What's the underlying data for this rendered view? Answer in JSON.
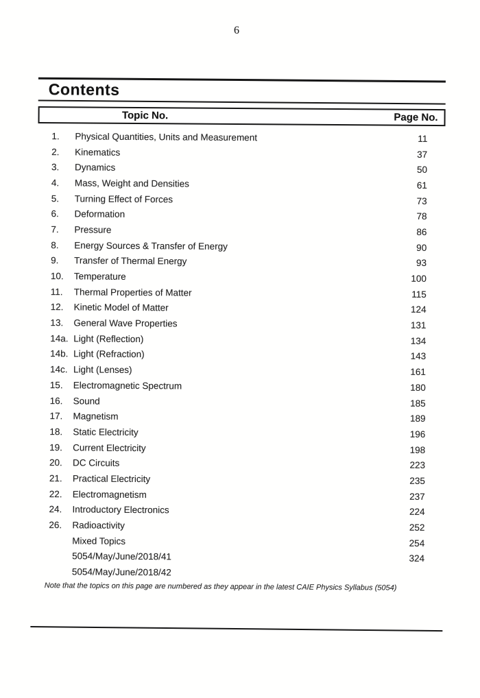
{
  "page": {
    "number": "6",
    "note": "Note that the topics on this page are numbered as they appear in the latest CAIE Physics Syllabus (5054)"
  },
  "contents": {
    "title": "Contents",
    "columns": {
      "topic": "Topic No.",
      "page": "Page No."
    },
    "rows": [
      {
        "no": "1.",
        "topic": "Physical Quantities, Units and Measurement",
        "page": "11"
      },
      {
        "no": "2.",
        "topic": "Kinematics",
        "page": "37"
      },
      {
        "no": "3.",
        "topic": "Dynamics",
        "page": "50"
      },
      {
        "no": "4.",
        "topic": "Mass, Weight and Densities",
        "page": "61"
      },
      {
        "no": "5.",
        "topic": "Turning Effect of Forces",
        "page": "73"
      },
      {
        "no": "6.",
        "topic": "Deformation",
        "page": "78"
      },
      {
        "no": "7.",
        "topic": "Pressure",
        "page": "86"
      },
      {
        "no": "8.",
        "topic": "Energy Sources & Transfer of Energy",
        "page": "90"
      },
      {
        "no": "9.",
        "topic": "Transfer of Thermal Energy",
        "page": "93"
      },
      {
        "no": "10.",
        "topic": "Temperature",
        "page": "100"
      },
      {
        "no": "11.",
        "topic": "Thermal Properties of Matter",
        "page": "115"
      },
      {
        "no": "12.",
        "topic": "Kinetic Model of Matter",
        "page": "124"
      },
      {
        "no": "13.",
        "topic": "General Wave Properties",
        "page": "131"
      },
      {
        "no": "14a.",
        "topic": "Light (Reflection)",
        "page": "134"
      },
      {
        "no": "14b.",
        "topic": "Light (Refraction)",
        "page": "143"
      },
      {
        "no": "14c.",
        "topic": "Light (Lenses)",
        "page": "161"
      },
      {
        "no": "15.",
        "topic": "Electromagnetic Spectrum",
        "page": "180"
      },
      {
        "no": "16.",
        "topic": "Sound",
        "page": "185"
      },
      {
        "no": "17.",
        "topic": "Magnetism",
        "page": "189"
      },
      {
        "no": "18.",
        "topic": "Static Electricity",
        "page": "196"
      },
      {
        "no": "19.",
        "topic": "Current Electricity",
        "page": "198"
      },
      {
        "no": "20.",
        "topic": "DC Circuits",
        "page": "223"
      },
      {
        "no": "21.",
        "topic": "Practical Electricity",
        "page": "235"
      },
      {
        "no": "22.",
        "topic": "Electromagnetism",
        "page": "237"
      },
      {
        "no": "24.",
        "topic": "Introductory Electronics",
        "page": "224"
      },
      {
        "no": "26.",
        "topic": "Radioactivity",
        "page": "252"
      },
      {
        "no": "",
        "topic": "Mixed Topics",
        "page": "254"
      },
      {
        "no": "",
        "topic": "5054/May/June/2018/41",
        "page": "324"
      },
      {
        "no": "",
        "topic": "5054/May/June/2018/42",
        "page": ""
      }
    ]
  }
}
